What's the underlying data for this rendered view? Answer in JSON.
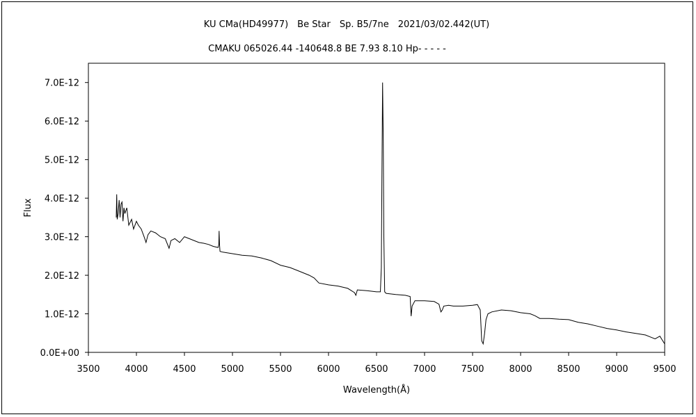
{
  "chart_data": {
    "type": "line",
    "title": "KU CMa(HD49977)　Be Star　Sp. B5/7ne　2021/03/02.442(UT)",
    "subtitle": "CMAKU 065026.44 -140648.8 BE 7.93 8.10 Hp- - - - -",
    "xlabel": "Wavelength(Å)",
    "ylabel": "Flux",
    "xlim": [
      3500,
      9500
    ],
    "ylim": [
      0,
      7.5e-12
    ],
    "x_ticks": [
      3500,
      4000,
      4500,
      5000,
      5500,
      6000,
      6500,
      7000,
      7500,
      8000,
      8500,
      9000,
      9500
    ],
    "x_tick_labels": [
      "3500",
      "4000",
      "4500",
      "5000",
      "5500",
      "6000",
      "6500",
      "7000",
      "7500",
      "8000",
      "8500",
      "9000",
      "9500"
    ],
    "y_ticks": [
      0,
      1e-12,
      2e-12,
      3e-12,
      4e-12,
      5e-12,
      6e-12,
      7e-12
    ],
    "y_tick_labels": [
      "0.0E+00",
      "1.0E-12",
      "2.0E-12",
      "3.0E-12",
      "4.0E-12",
      "5.0E-12",
      "6.0E-12",
      "7.0E-12"
    ],
    "grid": false,
    "line_color": "#000000",
    "series": [
      {
        "name": "KU CMa",
        "x": [
          3790,
          3795,
          3800,
          3810,
          3820,
          3830,
          3840,
          3850,
          3860,
          3870,
          3880,
          3900,
          3920,
          3950,
          3970,
          4000,
          4020,
          4050,
          4080,
          4100,
          4120,
          4150,
          4200,
          4250,
          4300,
          4340,
          4360,
          4400,
          4450,
          4500,
          4550,
          4600,
          4650,
          4700,
          4750,
          4800,
          4850,
          4858,
          4861,
          4865,
          4870,
          4900,
          5000,
          5100,
          5200,
          5300,
          5400,
          5500,
          5600,
          5700,
          5800,
          5850,
          5900,
          6000,
          6100,
          6200,
          6270,
          6285,
          6300,
          6400,
          6500,
          6540,
          6550,
          6556,
          6563,
          6570,
          6576,
          6585,
          6600,
          6700,
          6800,
          6850,
          6860,
          6870,
          6900,
          7000,
          7100,
          7150,
          7170,
          7185,
          7200,
          7250,
          7300,
          7400,
          7500,
          7550,
          7580,
          7595,
          7610,
          7625,
          7640,
          7660,
          7700,
          7800,
          7900,
          8000,
          8100,
          8150,
          8200,
          8300,
          8400,
          8500,
          8600,
          8700,
          8800,
          8900,
          9000,
          9100,
          9200,
          9300,
          9350,
          9400,
          9450,
          9480,
          9500
        ],
        "y": [
          3.5e-12,
          4.1e-12,
          3.45e-12,
          3.6e-12,
          3.95e-12,
          3.5e-12,
          3.85e-12,
          3.9e-12,
          3.4e-12,
          3.75e-12,
          3.6e-12,
          3.75e-12,
          3.3e-12,
          3.45e-12,
          3.2e-12,
          3.4e-12,
          3.3e-12,
          3.2e-12,
          3e-12,
          2.85e-12,
          3.05e-12,
          3.15e-12,
          3.1e-12,
          3e-12,
          2.95e-12,
          2.7e-12,
          2.9e-12,
          2.95e-12,
          2.85e-12,
          3e-12,
          2.95e-12,
          2.9e-12,
          2.85e-12,
          2.83e-12,
          2.8e-12,
          2.75e-12,
          2.72e-12,
          2.8e-12,
          3.15e-12,
          2.8e-12,
          2.62e-12,
          2.6e-12,
          2.56e-12,
          2.52e-12,
          2.5e-12,
          2.45e-12,
          2.38e-12,
          2.26e-12,
          2.2e-12,
          2.1e-12,
          2e-12,
          1.93e-12,
          1.8e-12,
          1.75e-12,
          1.72e-12,
          1.66e-12,
          1.55e-12,
          1.48e-12,
          1.62e-12,
          1.6e-12,
          1.57e-12,
          1.57e-12,
          2.2e-12,
          4.5e-12,
          7e-12,
          5.5e-12,
          3e-12,
          1.57e-12,
          1.53e-12,
          1.5e-12,
          1.48e-12,
          1.45e-12,
          9.4e-13,
          1.2e-12,
          1.34e-12,
          1.34e-12,
          1.32e-12,
          1.25e-12,
          1.05e-12,
          1.1e-12,
          1.2e-12,
          1.22e-12,
          1.2e-12,
          1.2e-12,
          1.22e-12,
          1.24e-12,
          1.1e-12,
          3e-13,
          2.2e-13,
          5e-13,
          8.5e-13,
          1e-12,
          1.05e-12,
          1.1e-12,
          1.08e-12,
          1.03e-12,
          1e-12,
          9.5e-13,
          8.8e-13,
          8.8e-13,
          8.6e-13,
          8.5e-13,
          7.8e-13,
          7.4e-13,
          6.8e-13,
          6.2e-13,
          5.8e-13,
          5.3e-13,
          4.9e-13,
          4.5e-13,
          4e-13,
          3.5e-13,
          4.2e-13,
          3e-13,
          2.2e-13
        ]
      }
    ]
  }
}
